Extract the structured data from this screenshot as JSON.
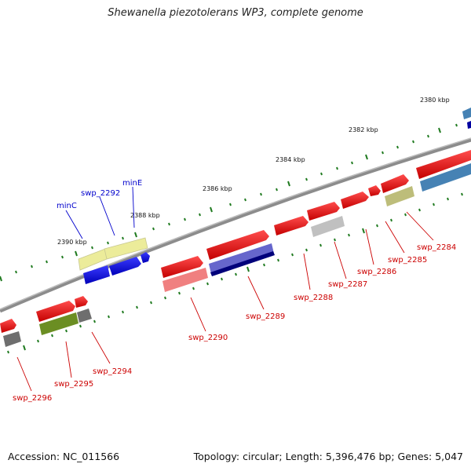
{
  "title": "Shewanella piezotolerans WP3, complete genome",
  "footer": {
    "accession": "Accession: NC_011566",
    "summary": "Topology: circular; Length: 5,396,476 bp; Genes: 5,047"
  },
  "scale_labels": [
    "2380 kbp",
    "2382 kbp",
    "2384 kbp",
    "2386 kbp",
    "2388 kbp",
    "2390 kbp"
  ],
  "genes": [
    {
      "id": "swp_2284",
      "label": "swp_2284",
      "label_color": "#cc0000"
    },
    {
      "id": "swp_2285",
      "label": "swp_2285",
      "label_color": "#cc0000"
    },
    {
      "id": "swp_2286",
      "label": "swp_2286",
      "label_color": "#cc0000"
    },
    {
      "id": "swp_2287",
      "label": "swp_2287",
      "label_color": "#cc0000"
    },
    {
      "id": "swp_2288",
      "label": "swp_2288",
      "label_color": "#cc0000"
    },
    {
      "id": "swp_2289",
      "label": "swp_2289",
      "label_color": "#cc0000"
    },
    {
      "id": "swp_2290",
      "label": "swp_2290",
      "label_color": "#cc0000"
    },
    {
      "id": "swp_2294",
      "label": "swp_2294",
      "label_color": "#cc0000"
    },
    {
      "id": "swp_2295",
      "label": "swp_2295",
      "label_color": "#cc0000"
    },
    {
      "id": "swp_2296",
      "label": "swp_2296",
      "label_color": "#cc0000"
    },
    {
      "id": "minE",
      "label": "minE",
      "label_color": "#0000cc"
    },
    {
      "id": "swp_2292",
      "label": "swp_2292",
      "label_color": "#0000cc"
    },
    {
      "id": "minC",
      "label": "minC",
      "label_color": "#0000cc"
    }
  ],
  "colors": {
    "backbone": "#8c8c8c",
    "tick": "#1f7a1f",
    "cds": "#e8000b",
    "blue": "#1010e0",
    "pale_yellow": "#ecec9a",
    "khaki": "#bdbd7a",
    "olive": "#6b8e23",
    "slate": "#6666cc",
    "navy": "#00007a",
    "steel": "#4682b4",
    "gray": "#808080",
    "light_gray": "#c0c0c0",
    "salmon": "#f08080"
  }
}
